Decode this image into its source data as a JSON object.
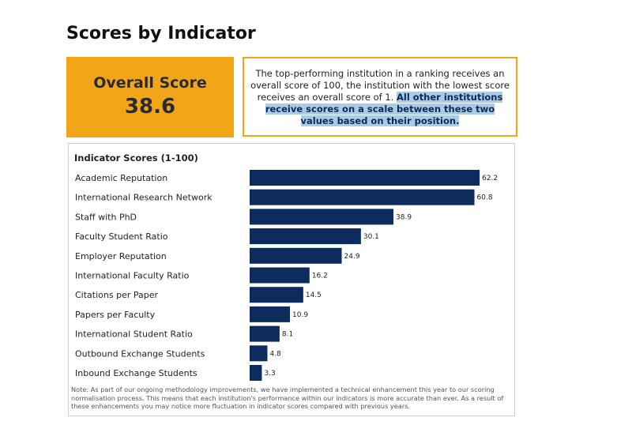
{
  "page": {
    "title": "Scores by Indicator"
  },
  "overall": {
    "label": "Overall Score",
    "value": "38.6"
  },
  "info": {
    "text": "The top-performing institution in a ranking receives an overall score of 100, the institution with the lowest score receives an overall score of 1.",
    "highlight": "All other institutions receive scores on a scale between these two values based on their position."
  },
  "colors": {
    "accent": "#f2a516",
    "bar": "#0d2b5c",
    "highlight": "#aacbe6"
  },
  "chart_data": {
    "type": "bar",
    "orientation": "horizontal",
    "title": "Indicator Scores (1-100)",
    "categories": [
      "Academic Reputation",
      "International Research Network",
      "Staff with PhD",
      "Faculty Student Ratio",
      "Employer Reputation",
      "International Faculty Ratio",
      "Citations per Paper",
      "Papers per Faculty",
      "International Student Ratio",
      "Outbound Exchange Students",
      "Inbound Exchange Students"
    ],
    "values": [
      62.2,
      60.8,
      38.9,
      30.1,
      24.9,
      16.2,
      14.5,
      10.9,
      8.1,
      4.8,
      3.3
    ],
    "value_labels": [
      "62.2",
      "60.8",
      "38.9",
      "30.1",
      "24.9",
      "16.2",
      "14.5",
      "10.9",
      "8.1",
      "4.8",
      "3.3"
    ],
    "xlim": [
      0,
      100
    ],
    "grid": false,
    "legend": "none"
  },
  "note": "Note: As part of our ongoing methodology improvements, we have implemented a technical enhancement this year to our scoring normalisation process. This means that each institution's performance within our indicators is more accurate than ever. As a result of these enhancements you may notice more fluctuation in indicator scores compared with previous years."
}
